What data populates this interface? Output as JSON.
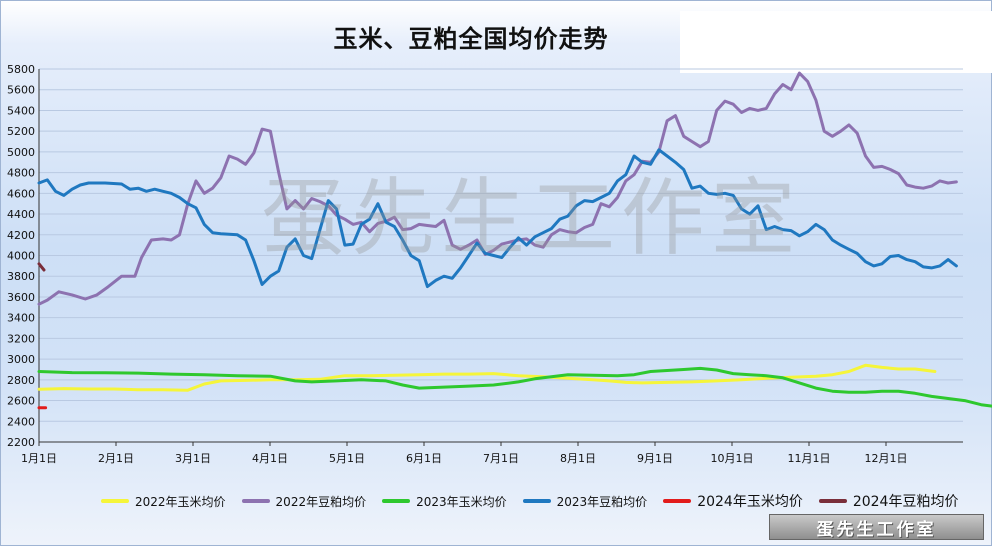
{
  "chart_data": {
    "type": "line",
    "title": "玉米、豆粕全国均价走势",
    "xlabel": "",
    "ylabel": "",
    "ylim": [
      2200,
      5800
    ],
    "yticks": [
      2200,
      2400,
      2600,
      2800,
      3000,
      3200,
      3400,
      3600,
      3800,
      4000,
      4200,
      4400,
      4600,
      4800,
      5000,
      5200,
      5400,
      5600,
      5800
    ],
    "xticks": [
      "1月1日",
      "2月1日",
      "3月1日",
      "4月1日",
      "5月1日",
      "6月1日",
      "7月1日",
      "8月1日",
      "9月1日",
      "10月1日",
      "11月1日",
      "12月1日"
    ],
    "grid": true,
    "legend_position": "bottom",
    "series": [
      {
        "name": "2022年玉米均价",
        "color": "#f5f53a",
        "points": [
          [
            0,
            2710
          ],
          [
            15,
            2715
          ],
          [
            30,
            2712
          ],
          [
            45,
            2712
          ],
          [
            60,
            2705
          ],
          [
            75,
            2705
          ],
          [
            90,
            2700
          ],
          [
            100,
            2760
          ],
          [
            110,
            2790
          ],
          [
            125,
            2795
          ],
          [
            140,
            2800
          ],
          [
            155,
            2800
          ],
          [
            170,
            2805
          ],
          [
            185,
            2840
          ],
          [
            200,
            2840
          ],
          [
            215,
            2845
          ],
          [
            230,
            2850
          ],
          [
            245,
            2855
          ],
          [
            260,
            2855
          ],
          [
            275,
            2860
          ],
          [
            290,
            2840
          ],
          [
            305,
            2830
          ],
          [
            320,
            2815
          ],
          [
            335,
            2800
          ],
          [
            345,
            2790
          ],
          [
            355,
            2775
          ],
          [
            365,
            2770
          ],
          [
            380,
            2775
          ],
          [
            395,
            2780
          ],
          [
            410,
            2790
          ],
          [
            425,
            2800
          ],
          [
            440,
            2815
          ],
          [
            455,
            2825
          ],
          [
            470,
            2835
          ],
          [
            480,
            2850
          ],
          [
            490,
            2880
          ],
          [
            500,
            2940
          ],
          [
            510,
            2920
          ],
          [
            520,
            2905
          ],
          [
            530,
            2905
          ],
          [
            542,
            2880
          ]
        ]
      },
      {
        "name": "2022年豆粕均价",
        "color": "#8d72b0",
        "points": [
          [
            0,
            3530
          ],
          [
            5,
            3570
          ],
          [
            12,
            3650
          ],
          [
            20,
            3620
          ],
          [
            28,
            3580
          ],
          [
            35,
            3620
          ],
          [
            42,
            3700
          ],
          [
            50,
            3800
          ],
          [
            58,
            3800
          ],
          [
            62,
            3980
          ],
          [
            68,
            4150
          ],
          [
            75,
            4160
          ],
          [
            80,
            4150
          ],
          [
            85,
            4200
          ],
          [
            90,
            4500
          ],
          [
            95,
            4720
          ],
          [
            100,
            4600
          ],
          [
            105,
            4650
          ],
          [
            110,
            4750
          ],
          [
            115,
            4960
          ],
          [
            120,
            4930
          ],
          [
            125,
            4880
          ],
          [
            130,
            4990
          ],
          [
            135,
            5220
          ],
          [
            140,
            5200
          ],
          [
            145,
            4800
          ],
          [
            150,
            4450
          ],
          [
            155,
            4530
          ],
          [
            160,
            4450
          ],
          [
            165,
            4550
          ],
          [
            170,
            4520
          ],
          [
            175,
            4480
          ],
          [
            180,
            4390
          ],
          [
            185,
            4350
          ],
          [
            190,
            4300
          ],
          [
            195,
            4320
          ],
          [
            200,
            4230
          ],
          [
            205,
            4310
          ],
          [
            210,
            4330
          ],
          [
            215,
            4370
          ],
          [
            220,
            4250
          ],
          [
            225,
            4260
          ],
          [
            230,
            4300
          ],
          [
            235,
            4290
          ],
          [
            240,
            4280
          ],
          [
            245,
            4340
          ],
          [
            250,
            4100
          ],
          [
            255,
            4060
          ],
          [
            260,
            4100
          ],
          [
            265,
            4150
          ],
          [
            270,
            4010
          ],
          [
            275,
            4050
          ],
          [
            280,
            4110
          ],
          [
            285,
            4130
          ],
          [
            290,
            4150
          ],
          [
            295,
            4160
          ],
          [
            300,
            4100
          ],
          [
            305,
            4080
          ],
          [
            310,
            4200
          ],
          [
            315,
            4250
          ],
          [
            320,
            4230
          ],
          [
            325,
            4220
          ],
          [
            330,
            4270
          ],
          [
            335,
            4300
          ],
          [
            340,
            4500
          ],
          [
            345,
            4470
          ],
          [
            350,
            4560
          ],
          [
            355,
            4720
          ],
          [
            360,
            4780
          ],
          [
            365,
            4910
          ],
          [
            370,
            4900
          ],
          [
            375,
            5000
          ],
          [
            380,
            5300
          ],
          [
            385,
            5350
          ],
          [
            390,
            5150
          ],
          [
            395,
            5100
          ],
          [
            400,
            5050
          ],
          [
            405,
            5100
          ],
          [
            410,
            5400
          ],
          [
            415,
            5490
          ],
          [
            420,
            5460
          ],
          [
            425,
            5380
          ],
          [
            430,
            5420
          ],
          [
            435,
            5400
          ],
          [
            440,
            5420
          ],
          [
            445,
            5560
          ],
          [
            450,
            5650
          ],
          [
            455,
            5600
          ],
          [
            460,
            5760
          ],
          [
            465,
            5680
          ],
          [
            470,
            5500
          ],
          [
            475,
            5200
          ],
          [
            480,
            5150
          ],
          [
            485,
            5200
          ],
          [
            490,
            5260
          ],
          [
            495,
            5180
          ],
          [
            500,
            4960
          ],
          [
            505,
            4850
          ],
          [
            510,
            4860
          ],
          [
            515,
            4830
          ],
          [
            520,
            4790
          ],
          [
            525,
            4680
          ],
          [
            530,
            4660
          ],
          [
            535,
            4650
          ],
          [
            540,
            4670
          ],
          [
            545,
            4720
          ],
          [
            550,
            4700
          ],
          [
            555,
            4710
          ]
        ]
      },
      {
        "name": "2023年玉米均价",
        "color": "#2ec82e",
        "points": [
          [
            0,
            2880
          ],
          [
            20,
            2870
          ],
          [
            40,
            2868
          ],
          [
            60,
            2865
          ],
          [
            80,
            2855
          ],
          [
            100,
            2850
          ],
          [
            120,
            2840
          ],
          [
            140,
            2835
          ],
          [
            155,
            2790
          ],
          [
            165,
            2780
          ],
          [
            180,
            2790
          ],
          [
            195,
            2800
          ],
          [
            210,
            2790
          ],
          [
            220,
            2750
          ],
          [
            230,
            2720
          ],
          [
            245,
            2730
          ],
          [
            260,
            2740
          ],
          [
            275,
            2750
          ],
          [
            290,
            2780
          ],
          [
            300,
            2810
          ],
          [
            310,
            2830
          ],
          [
            320,
            2850
          ],
          [
            335,
            2845
          ],
          [
            350,
            2840
          ],
          [
            360,
            2850
          ],
          [
            370,
            2880
          ],
          [
            380,
            2890
          ],
          [
            390,
            2900
          ],
          [
            400,
            2910
          ],
          [
            410,
            2895
          ],
          [
            420,
            2860
          ],
          [
            430,
            2850
          ],
          [
            440,
            2840
          ],
          [
            450,
            2820
          ],
          [
            460,
            2770
          ],
          [
            470,
            2720
          ],
          [
            480,
            2690
          ],
          [
            490,
            2680
          ],
          [
            500,
            2680
          ],
          [
            510,
            2690
          ],
          [
            520,
            2690
          ],
          [
            530,
            2670
          ],
          [
            540,
            2640
          ],
          [
            550,
            2620
          ],
          [
            560,
            2600
          ],
          [
            570,
            2560
          ],
          [
            580,
            2540
          ],
          [
            590,
            2530
          ]
        ]
      },
      {
        "name": "2023年豆粕均价",
        "color": "#1f78c0",
        "points": [
          [
            0,
            4700
          ],
          [
            5,
            4730
          ],
          [
            10,
            4620
          ],
          [
            15,
            4580
          ],
          [
            20,
            4640
          ],
          [
            25,
            4680
          ],
          [
            30,
            4700
          ],
          [
            40,
            4700
          ],
          [
            50,
            4690
          ],
          [
            55,
            4640
          ],
          [
            60,
            4650
          ],
          [
            65,
            4620
          ],
          [
            70,
            4640
          ],
          [
            75,
            4620
          ],
          [
            80,
            4600
          ],
          [
            85,
            4560
          ],
          [
            90,
            4500
          ],
          [
            95,
            4460
          ],
          [
            100,
            4300
          ],
          [
            105,
            4220
          ],
          [
            110,
            4210
          ],
          [
            120,
            4200
          ],
          [
            125,
            4150
          ],
          [
            130,
            3950
          ],
          [
            135,
            3720
          ],
          [
            140,
            3800
          ],
          [
            145,
            3850
          ],
          [
            150,
            4080
          ],
          [
            155,
            4160
          ],
          [
            160,
            4000
          ],
          [
            165,
            3970
          ],
          [
            170,
            4250
          ],
          [
            175,
            4530
          ],
          [
            180,
            4450
          ],
          [
            185,
            4100
          ],
          [
            190,
            4110
          ],
          [
            195,
            4300
          ],
          [
            200,
            4350
          ],
          [
            205,
            4500
          ],
          [
            210,
            4320
          ],
          [
            215,
            4280
          ],
          [
            220,
            4150
          ],
          [
            225,
            4000
          ],
          [
            230,
            3950
          ],
          [
            235,
            3700
          ],
          [
            240,
            3760
          ],
          [
            245,
            3800
          ],
          [
            250,
            3780
          ],
          [
            255,
            3880
          ],
          [
            260,
            4000
          ],
          [
            265,
            4120
          ],
          [
            270,
            4020
          ],
          [
            275,
            4000
          ],
          [
            280,
            3980
          ],
          [
            285,
            4080
          ],
          [
            290,
            4170
          ],
          [
            295,
            4100
          ],
          [
            300,
            4180
          ],
          [
            305,
            4220
          ],
          [
            310,
            4260
          ],
          [
            315,
            4350
          ],
          [
            320,
            4380
          ],
          [
            325,
            4480
          ],
          [
            330,
            4530
          ],
          [
            335,
            4520
          ],
          [
            340,
            4560
          ],
          [
            345,
            4600
          ],
          [
            350,
            4720
          ],
          [
            355,
            4780
          ],
          [
            360,
            4960
          ],
          [
            365,
            4900
          ],
          [
            370,
            4880
          ],
          [
            375,
            5020
          ],
          [
            380,
            4960
          ],
          [
            385,
            4900
          ],
          [
            390,
            4830
          ],
          [
            395,
            4650
          ],
          [
            400,
            4670
          ],
          [
            405,
            4600
          ],
          [
            410,
            4590
          ],
          [
            415,
            4600
          ],
          [
            420,
            4580
          ],
          [
            425,
            4450
          ],
          [
            430,
            4400
          ],
          [
            435,
            4480
          ],
          [
            440,
            4250
          ],
          [
            445,
            4280
          ],
          [
            450,
            4250
          ],
          [
            455,
            4240
          ],
          [
            460,
            4190
          ],
          [
            465,
            4230
          ],
          [
            470,
            4300
          ],
          [
            475,
            4250
          ],
          [
            480,
            4150
          ],
          [
            485,
            4100
          ],
          [
            490,
            4060
          ],
          [
            495,
            4020
          ],
          [
            500,
            3940
          ],
          [
            505,
            3900
          ],
          [
            510,
            3920
          ],
          [
            515,
            3990
          ],
          [
            520,
            4000
          ],
          [
            525,
            3960
          ],
          [
            530,
            3940
          ],
          [
            535,
            3890
          ],
          [
            540,
            3880
          ],
          [
            545,
            3900
          ],
          [
            550,
            3960
          ],
          [
            555,
            3900
          ]
        ]
      },
      {
        "name": "2024年玉米均价",
        "color": "#e21b1b",
        "points": [
          [
            0,
            2530
          ],
          [
            4,
            2530
          ]
        ]
      },
      {
        "name": "2024年豆粕均价",
        "color": "#7a2e3a",
        "points": [
          [
            0,
            3920
          ],
          [
            3,
            3860
          ]
        ]
      }
    ]
  },
  "watermark": "蛋先生工作室",
  "badge": "蛋先生工作室"
}
